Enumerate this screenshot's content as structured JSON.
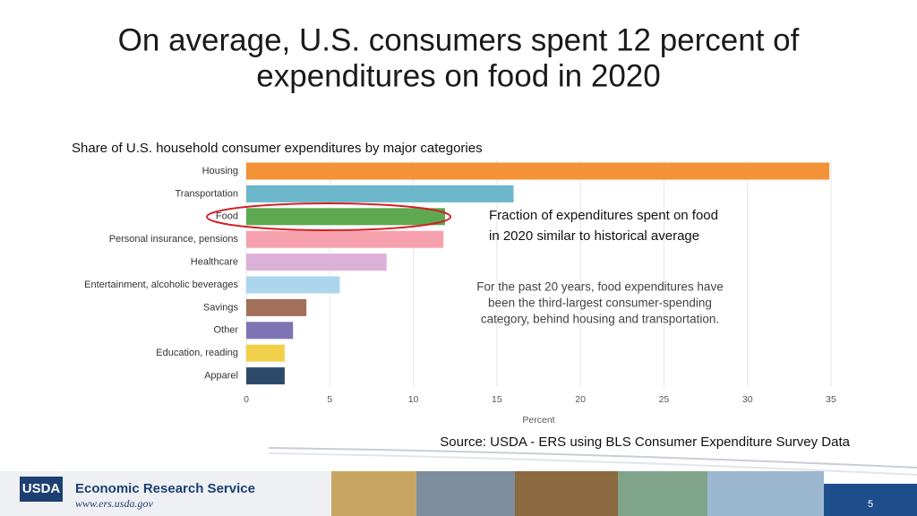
{
  "slide_title": [
    "On average, U.S. consumers spent 12 percent of",
    "expenditures on food in 2020"
  ],
  "chart_data": {
    "type": "bar",
    "orientation": "horizontal",
    "title": "Share of U.S. household consumer expenditures by major categories",
    "categories": [
      "Housing",
      "Transportation",
      "Food",
      "Personal insurance, pensions",
      "Healthcare",
      "Entertainment, alcoholic beverages",
      "Savings",
      "Other",
      "Education, reading",
      "Apparel"
    ],
    "values": [
      34.9,
      16.0,
      11.9,
      11.8,
      8.4,
      5.6,
      3.6,
      2.8,
      2.3,
      2.3
    ],
    "colors": [
      "#f39237",
      "#6cb7c9",
      "#5ea84f",
      "#f8a1ae",
      "#dcb1d9",
      "#acd6ee",
      "#a2705a",
      "#7e74b4",
      "#f1d04a",
      "#2e4a6b"
    ],
    "xlim": [
      0,
      35
    ],
    "xticks": [
      0,
      5,
      10,
      15,
      20,
      25,
      30,
      35
    ],
    "xlabel": "Percent",
    "grid": true,
    "annotations": [
      [
        "Fraction of expenditures spent on food",
        "in 2020 similar to historical average"
      ],
      [
        "For the past 20 years, food expenditures have",
        "been the third-largest consumer-spending",
        "category, behind housing and transportation."
      ]
    ]
  },
  "source": "Source: USDA - ERS using BLS Consumer Expenditure Survey Data",
  "footer": {
    "logo": "USDA",
    "agency": "Economic Research Service",
    "url": "www.ers.usda.gov",
    "page": "5"
  }
}
